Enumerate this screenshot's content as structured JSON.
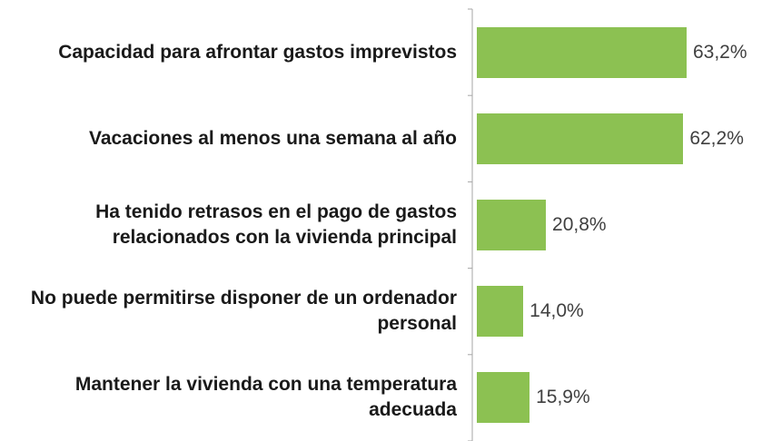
{
  "chart_data": {
    "type": "bar",
    "orientation": "horizontal",
    "categories": [
      "Capacidad para afrontar gastos imprevistos",
      "Vacaciones al menos una semana al año",
      "Ha tenido retrasos en el pago de gastos relacionados con la vivienda principal",
      "No puede permitirse disponer de un ordenador personal",
      "Mantener la vivienda con una temperatura adecuada"
    ],
    "values": [
      63.2,
      62.2,
      20.8,
      14.0,
      15.9
    ],
    "value_labels": [
      "63,2%",
      "62,2%",
      "20,8%",
      "14,0%",
      "15,9%"
    ],
    "color": "#8cc152"
  }
}
